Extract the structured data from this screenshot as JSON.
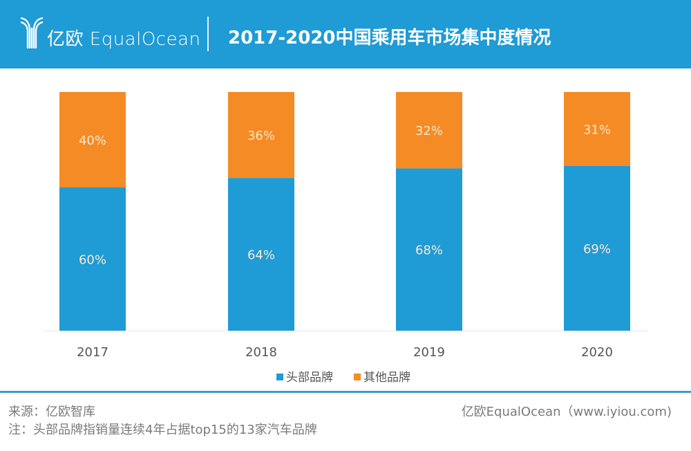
{
  "header": {
    "logo_text": "亿欧 EqualOcean",
    "title": "2017-2020中国乘用车市场集中度情况"
  },
  "colors": {
    "header_bg": "#1f9bd5",
    "head_brands": "#1f9bd5",
    "other_brands": "#f48b25",
    "label_text": "#fbe9d2",
    "footer_line": "#3c9ed0"
  },
  "chart_data": {
    "type": "bar",
    "stacked": true,
    "title": "2017-2020中国乘用车市场集中度情况",
    "xlabel": "",
    "ylabel": "",
    "ylim": [
      0,
      100
    ],
    "grid": false,
    "legend_position": "bottom",
    "categories": [
      "2017",
      "2018",
      "2019",
      "2020"
    ],
    "series": [
      {
        "name": "头部品牌",
        "values": [
          60,
          64,
          68,
          69
        ],
        "labels": [
          "60%",
          "64%",
          "68%",
          "69%"
        ]
      },
      {
        "name": "其他品牌",
        "values": [
          40,
          36,
          32,
          31
        ],
        "labels": [
          "40%",
          "36%",
          "32%",
          "31%"
        ]
      }
    ]
  },
  "footer": {
    "source": "来源：亿欧智库",
    "note": "注：头部品牌指销量连续4年占据top15的13家汽车品牌",
    "credit": "亿欧EqualOcean（www.iyiou.com)"
  }
}
